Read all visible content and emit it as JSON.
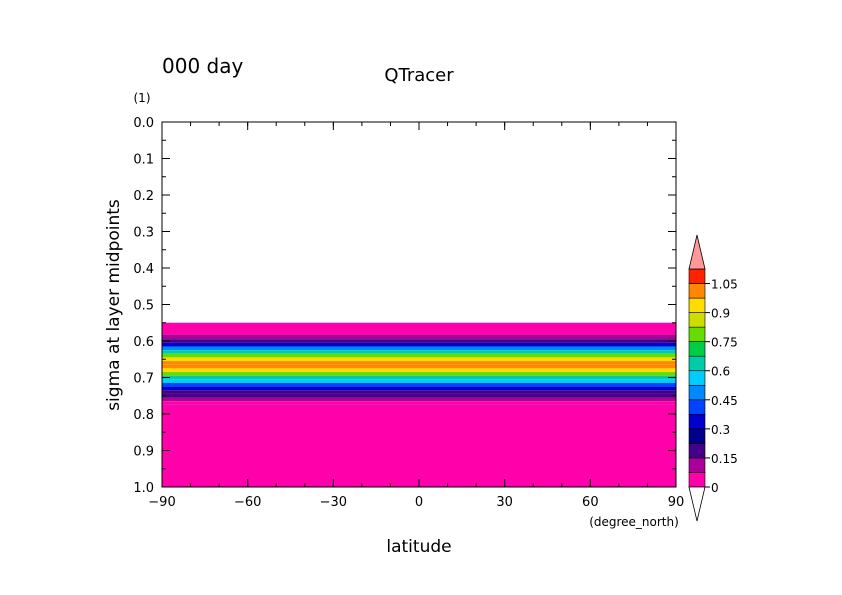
{
  "chart_data": {
    "type": "heatmap",
    "title": "QTracer",
    "time_label": "000 day",
    "xlabel": "latitude",
    "ylabel": "sigma at layer midpoints",
    "x_unit": "(degree_north)",
    "y_unit": "(1)",
    "xlim": [
      -90,
      90
    ],
    "ylim": [
      0.0,
      1.0
    ],
    "x_ticks": [
      "−90",
      "−60",
      "−30",
      "0",
      "30",
      "60",
      "90"
    ],
    "x_tick_values": [
      -90,
      -60,
      -30,
      0,
      30,
      60,
      90
    ],
    "y_ticks": [
      "0.0",
      "0.1",
      "0.2",
      "0.3",
      "0.4",
      "0.5",
      "0.6",
      "0.7",
      "0.8",
      "0.9",
      "1.0"
    ],
    "y_tick_values": [
      0.0,
      0.1,
      0.2,
      0.3,
      0.4,
      0.5,
      0.6,
      0.7,
      0.8,
      0.9,
      1.0
    ],
    "sigma_levels": [
      0.025,
      0.075,
      0.125,
      0.175,
      0.225,
      0.275,
      0.325,
      0.375,
      0.425,
      0.475,
      0.525,
      0.575,
      0.59,
      0.6,
      0.61,
      0.62,
      0.63,
      0.64,
      0.65,
      0.66,
      0.67,
      0.68,
      0.69,
      0.7,
      0.71,
      0.72,
      0.73,
      0.74,
      0.75,
      0.76,
      0.77,
      0.78,
      0.85,
      0.95
    ],
    "tracer_values": [
      null,
      null,
      null,
      null,
      null,
      null,
      null,
      null,
      null,
      null,
      null,
      0.0,
      0.1,
      0.2,
      0.3,
      0.45,
      0.6,
      0.75,
      0.9,
      1.0,
      1.0,
      0.95,
      0.8,
      0.65,
      0.55,
      0.4,
      0.3,
      0.2,
      0.15,
      0.1,
      0.05,
      0.0,
      0.0,
      0.0
    ],
    "colorbar": {
      "levels": [
        0,
        0.075,
        0.15,
        0.225,
        0.3,
        0.375,
        0.45,
        0.525,
        0.6,
        0.675,
        0.75,
        0.825,
        0.9,
        0.975,
        1.05
      ],
      "labels": [
        "0",
        "0.15",
        "0.3",
        "0.45",
        "0.6",
        "0.75",
        "0.9",
        "1.05"
      ],
      "label_values": [
        0,
        0.15,
        0.3,
        0.45,
        0.6,
        0.75,
        0.9,
        1.05
      ],
      "colors": [
        "#ff00aa",
        "#aa0099",
        "#440088",
        "#000088",
        "#0000cc",
        "#0044ff",
        "#0088ff",
        "#00ccff",
        "#00ccaa",
        "#00cc44",
        "#66dd00",
        "#ccdd00",
        "#ffdd00",
        "#ff8800",
        "#ff2200",
        "#ee0000"
      ],
      "extend_high_color": "#ff9999",
      "extend_low_color": "#ffffff",
      "orientation": "vertical-right"
    }
  }
}
